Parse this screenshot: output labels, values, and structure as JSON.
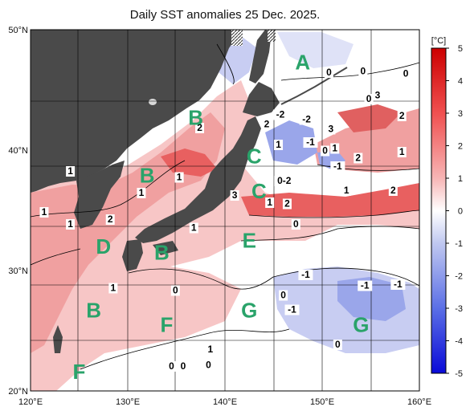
{
  "title": "Daily SST anomalies 25 Dec. 2025.",
  "unit": "[°C]",
  "lon_ticks": [
    "120°E",
    "130°E",
    "140°E",
    "150°E",
    "160°E"
  ],
  "lat_ticks": [
    "50°N",
    "40°N",
    "30°N",
    "20°N"
  ],
  "colorbar": {
    "ticks": [
      "5",
      "4",
      "3",
      "2",
      "1",
      "0",
      "-1",
      "-2",
      "-3",
      "-4",
      "-5"
    ],
    "range": [
      -5,
      5
    ]
  },
  "regions": [
    {
      "label": "A",
      "lon": 148.0,
      "lat": 47.3
    },
    {
      "label": "B",
      "lon": 137.0,
      "lat": 42.7
    },
    {
      "label": "C",
      "lon": 143.0,
      "lat": 39.5
    },
    {
      "label": "B",
      "lon": 132.0,
      "lat": 37.9
    },
    {
      "label": "C",
      "lon": 143.5,
      "lat": 36.6
    },
    {
      "label": "D",
      "lon": 127.5,
      "lat": 32.0
    },
    {
      "label": "E",
      "lon": 142.5,
      "lat": 32.5
    },
    {
      "label": "B",
      "lon": 133.5,
      "lat": 31.5
    },
    {
      "label": "B",
      "lon": 126.5,
      "lat": 26.7
    },
    {
      "label": "F",
      "lon": 134.0,
      "lat": 25.5
    },
    {
      "label": "G",
      "lon": 142.5,
      "lat": 26.7
    },
    {
      "label": "G",
      "lon": 154.0,
      "lat": 25.5
    },
    {
      "label": "F",
      "lon": 125.0,
      "lat": 21.6
    }
  ],
  "contour_labels": [
    {
      "text": "0",
      "lon": 150.7,
      "lat": 46.2
    },
    {
      "text": "0",
      "lon": 154.2,
      "lat": 46.3
    },
    {
      "text": "0",
      "lon": 158.6,
      "lat": 46.1
    },
    {
      "text": "2",
      "lon": 137.4,
      "lat": 41.6
    },
    {
      "text": "-2",
      "lon": 145.7,
      "lat": 42.7
    },
    {
      "text": "2",
      "lon": 144.3,
      "lat": 41.9
    },
    {
      "text": "-2",
      "lon": 148.4,
      "lat": 42.3
    },
    {
      "text": "3",
      "lon": 150.9,
      "lat": 41.5
    },
    {
      "text": "1",
      "lon": 145.5,
      "lat": 40.2
    },
    {
      "text": "-1",
      "lon": 148.8,
      "lat": 40.4
    },
    {
      "text": "0",
      "lon": 150.3,
      "lat": 39.7
    },
    {
      "text": "1",
      "lon": 151.3,
      "lat": 39.9
    },
    {
      "text": "3",
      "lon": 155.7,
      "lat": 44.3
    },
    {
      "text": "2",
      "lon": 158.2,
      "lat": 42.6
    },
    {
      "text": "2",
      "lon": 153.7,
      "lat": 39.1
    },
    {
      "text": "0",
      "lon": 154.8,
      "lat": 44.0
    },
    {
      "text": "-1",
      "lon": 151.6,
      "lat": 38.4
    },
    {
      "text": "1",
      "lon": 158.2,
      "lat": 39.6
    },
    {
      "text": "1",
      "lon": 124.1,
      "lat": 38.0
    },
    {
      "text": "1",
      "lon": 135.3,
      "lat": 37.5
    },
    {
      "text": "0-2",
      "lon": 146.1,
      "lat": 37.2
    },
    {
      "text": "1",
      "lon": 131.4,
      "lat": 36.2
    },
    {
      "text": "3",
      "lon": 141.0,
      "lat": 36.0
    },
    {
      "text": "1",
      "lon": 144.6,
      "lat": 35.4
    },
    {
      "text": "2",
      "lon": 146.4,
      "lat": 35.3
    },
    {
      "text": "1",
      "lon": 152.5,
      "lat": 36.4
    },
    {
      "text": "2",
      "lon": 157.3,
      "lat": 36.4
    },
    {
      "text": "1",
      "lon": 121.4,
      "lat": 34.6
    },
    {
      "text": "1",
      "lon": 124.1,
      "lat": 33.6
    },
    {
      "text": "2",
      "lon": 128.2,
      "lat": 34.0
    },
    {
      "text": "1",
      "lon": 136.8,
      "lat": 33.3
    },
    {
      "text": "0",
      "lon": 147.3,
      "lat": 33.6
    },
    {
      "text": "-1",
      "lon": 148.3,
      "lat": 29.4
    },
    {
      "text": "1",
      "lon": 128.5,
      "lat": 28.3
    },
    {
      "text": "0",
      "lon": 134.9,
      "lat": 28.1
    },
    {
      "text": "0",
      "lon": 146.0,
      "lat": 27.7
    },
    {
      "text": "-1",
      "lon": 146.9,
      "lat": 26.5
    },
    {
      "text": "-1",
      "lon": 154.4,
      "lat": 28.5
    },
    {
      "text": "-1",
      "lon": 157.8,
      "lat": 28.6
    },
    {
      "text": "0",
      "lon": 151.6,
      "lat": 23.6
    },
    {
      "text": "1",
      "lon": 138.5,
      "lat": 23.2
    },
    {
      "text": "0",
      "lon": 134.5,
      "lat": 21.8
    },
    {
      "text": "0",
      "lon": 135.7,
      "lat": 21.8
    },
    {
      "text": "0",
      "lon": 138.3,
      "lat": 21.9
    }
  ]
}
